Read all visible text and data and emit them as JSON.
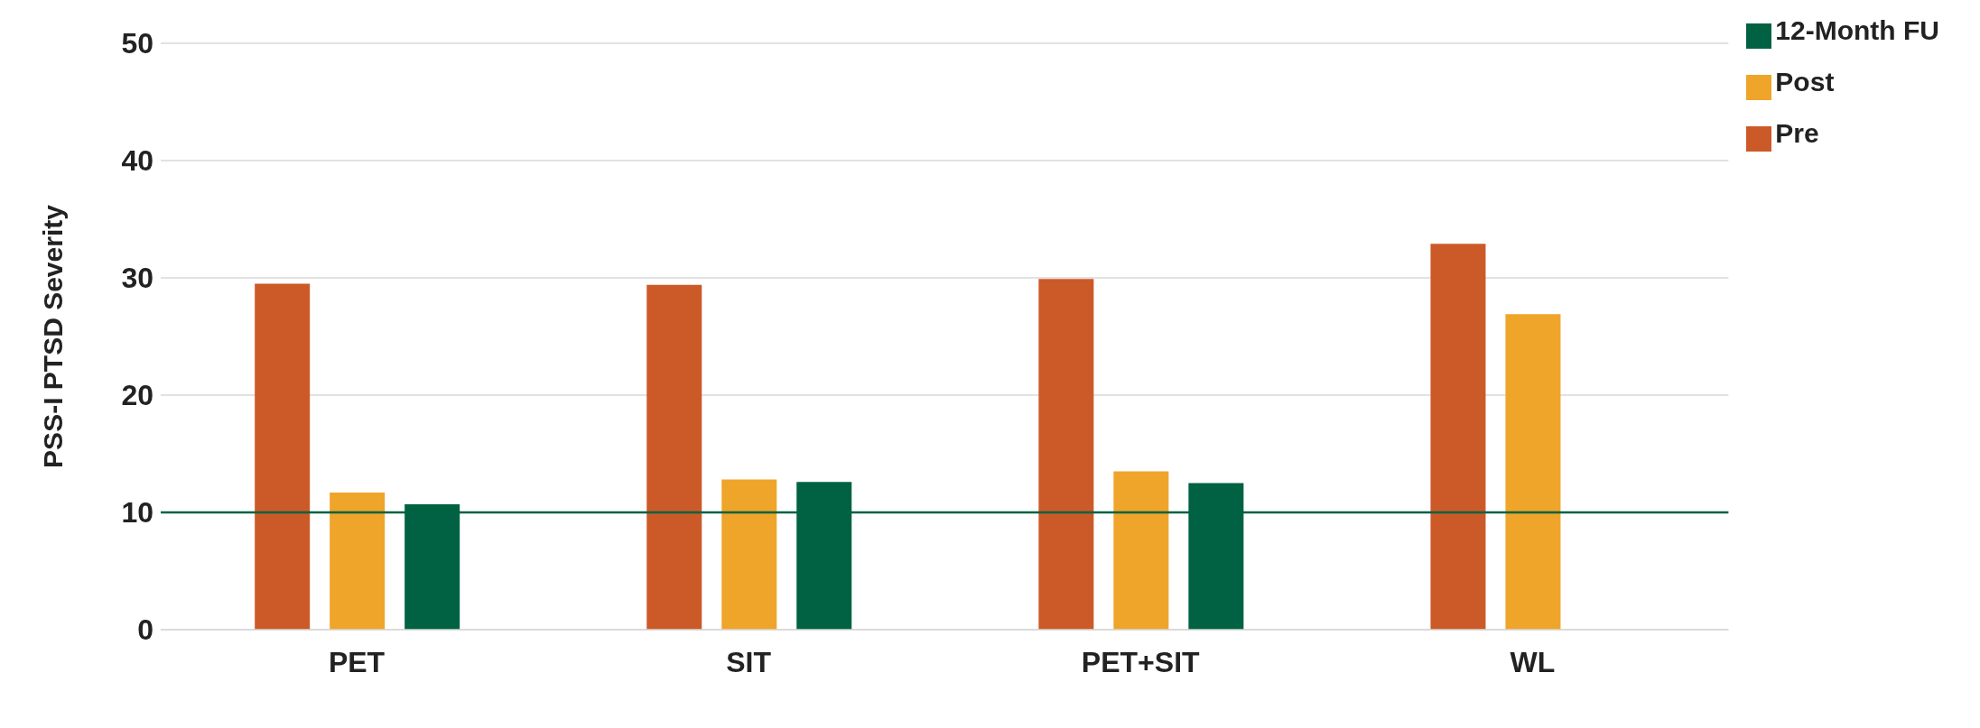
{
  "chart_data": {
    "type": "bar",
    "ylabel": "PSS-I PTSD Severity",
    "categories": [
      "PET",
      "SIT",
      "PET+SIT",
      "WL"
    ],
    "series": [
      {
        "name": "Pre",
        "color": "#cc5a28",
        "values": [
          29.5,
          29.4,
          29.9,
          32.9
        ]
      },
      {
        "name": "Post",
        "color": "#efa42a",
        "values": [
          11.7,
          12.8,
          13.5,
          26.9
        ]
      },
      {
        "name": "12-Month FU",
        "color": "#006242",
        "values": [
          10.7,
          12.6,
          12.5,
          null
        ]
      }
    ],
    "ylim": [
      0,
      50
    ],
    "yticks": [
      0,
      10,
      20,
      30,
      40,
      50
    ],
    "grid": "y",
    "legend": "top right",
    "ref_lines": [
      {
        "axis": "y",
        "value": 10,
        "color": "#006242"
      }
    ]
  }
}
